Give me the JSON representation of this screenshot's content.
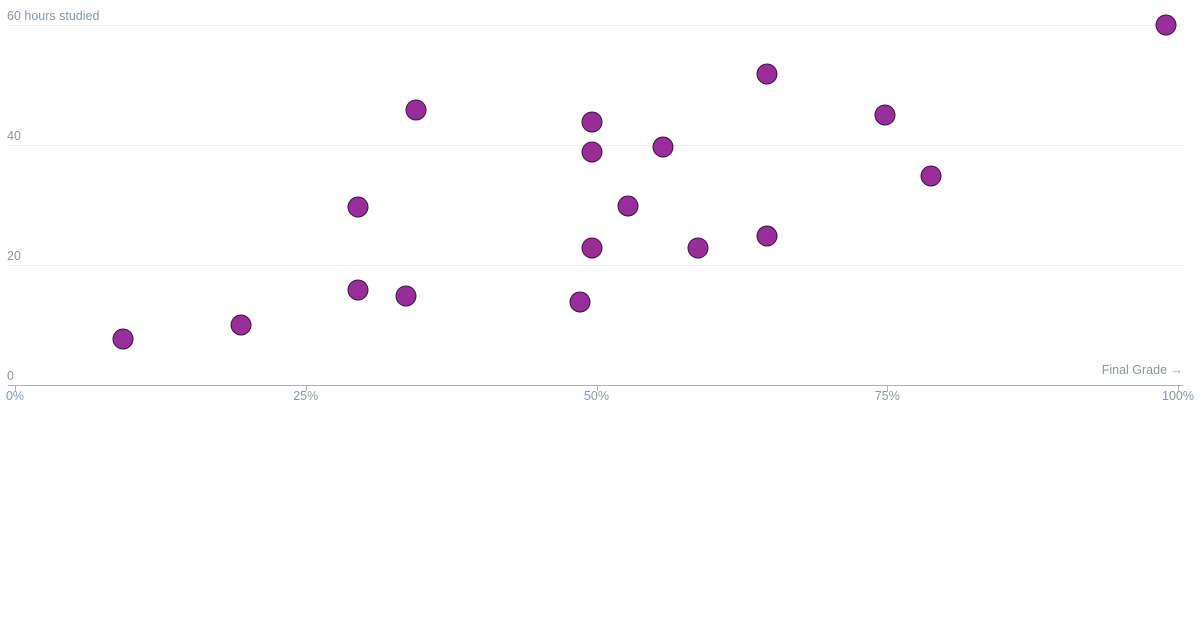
{
  "chart_data": {
    "type": "scatter",
    "title": "",
    "xlabel": "Final Grade →",
    "ylabel": "hours studied",
    "xlim": [
      0,
      100
    ],
    "ylim": [
      0,
      60
    ],
    "grid": true,
    "legend_position": "none",
    "x_ticks": [
      {
        "value": 0,
        "label": "0%"
      },
      {
        "value": 25,
        "label": "25%"
      },
      {
        "value": 50,
        "label": "50%"
      },
      {
        "value": 75,
        "label": "75%"
      },
      {
        "value": 100,
        "label": "100%"
      }
    ],
    "y_ticks": [
      {
        "value": 0,
        "label": "0"
      },
      {
        "value": 20,
        "label": "20"
      },
      {
        "value": 40,
        "label": "40"
      },
      {
        "value": 60,
        "label": "60 hours studied"
      }
    ],
    "points": [
      {
        "final_grade_pct": 9.3,
        "hours_studied": 7.7
      },
      {
        "final_grade_pct": 19.4,
        "hours_studied": 10
      },
      {
        "final_grade_pct": 29.5,
        "hours_studied": 15.8
      },
      {
        "final_grade_pct": 29.5,
        "hours_studied": 29.7
      },
      {
        "final_grade_pct": 33.6,
        "hours_studied": 14.8
      },
      {
        "final_grade_pct": 34.5,
        "hours_studied": 45.9
      },
      {
        "final_grade_pct": 48.6,
        "hours_studied": 13.9
      },
      {
        "final_grade_pct": 49.6,
        "hours_studied": 22.8
      },
      {
        "final_grade_pct": 49.6,
        "hours_studied": 38.8
      },
      {
        "final_grade_pct": 49.6,
        "hours_studied": 43.8
      },
      {
        "final_grade_pct": 52.7,
        "hours_studied": 29.8
      },
      {
        "final_grade_pct": 55.7,
        "hours_studied": 39.7
      },
      {
        "final_grade_pct": 58.7,
        "hours_studied": 22.9
      },
      {
        "final_grade_pct": 64.7,
        "hours_studied": 24.8
      },
      {
        "final_grade_pct": 64.7,
        "hours_studied": 51.8
      },
      {
        "final_grade_pct": 74.8,
        "hours_studied": 45
      },
      {
        "final_grade_pct": 78.8,
        "hours_studied": 34.8
      },
      {
        "final_grade_pct": 99,
        "hours_studied": 60
      }
    ],
    "colors": {
      "background": "#ffffff",
      "point_fill": "#992d9b",
      "point_stroke": "rgba(0,0,0,0.6)",
      "gridline": "#ededed",
      "axis_line": "#aab0b6",
      "tick_text": "#8d97a3"
    }
  }
}
